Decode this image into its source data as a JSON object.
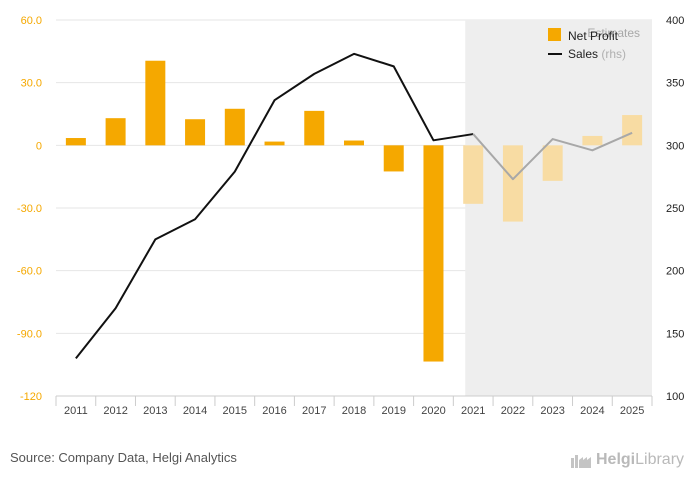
{
  "source": "Source: Company Data, Helgi Analytics",
  "brand": {
    "name_bold": "Helgi",
    "name_light": "Library"
  },
  "chart_data": {
    "type": "bar",
    "categories": [
      "2011",
      "2012",
      "2013",
      "2014",
      "2015",
      "2016",
      "2017",
      "2018",
      "2019",
      "2020",
      "2021",
      "2022",
      "2023",
      "2024",
      "2025"
    ],
    "series": [
      {
        "name": "Net Profit",
        "type": "bar",
        "axis": "left",
        "color": "#f5a800",
        "estimate_color": "#f8dca3",
        "values": [
          3.5,
          13,
          40.5,
          12.5,
          17.5,
          1.8,
          16.5,
          2.3,
          -12.5,
          -103.5,
          -28,
          -36.5,
          -17,
          4.5,
          14.5
        ]
      },
      {
        "name": "Sales",
        "type": "line",
        "axis": "right",
        "legend_suffix": "(rhs)",
        "color": "#111111",
        "estimate_color": "#a8a8a8",
        "values": [
          130,
          170,
          225,
          241,
          279,
          336,
          357,
          373,
          363,
          304,
          309,
          273,
          305,
          296,
          310
        ]
      }
    ],
    "estimate_start_index": 10,
    "estimate_label": "Estimates",
    "estimate_shade_color": "#eeeeee",
    "y_left": {
      "ylim": [
        -120,
        60
      ],
      "ticks": [
        60,
        30,
        0,
        -30,
        -60,
        -90,
        -120
      ],
      "tick_labels": [
        "60.0",
        "30.0",
        "0",
        "-30.0",
        "-60.0",
        "-90.0",
        "-120"
      ],
      "color": "#f5a800"
    },
    "y_right": {
      "ylim": [
        100,
        400
      ],
      "ticks": [
        400,
        350,
        300,
        250,
        200,
        150,
        100
      ],
      "tick_labels": [
        "400",
        "350",
        "300",
        "250",
        "200",
        "150",
        "100"
      ],
      "color": "#222222"
    },
    "grid": true,
    "legend_position": "top-right"
  }
}
